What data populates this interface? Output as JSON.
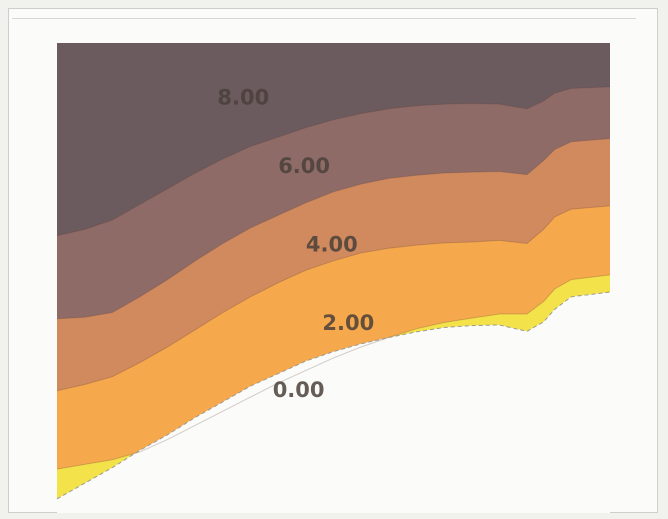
{
  "chart_data": {
    "type": "area",
    "title": "",
    "xlabel": "",
    "ylabel": "",
    "x": [
      0,
      5,
      10,
      15,
      20,
      25,
      30,
      35,
      40,
      45,
      50,
      55,
      60,
      65,
      70,
      75,
      80,
      85,
      88,
      90,
      93,
      100
    ],
    "boundaries": [
      {
        "level": "0.00",
        "y": [
          0.45,
          0.95,
          1.45,
          2.0,
          2.5,
          3.05,
          3.55,
          4.05,
          4.45,
          4.85,
          5.15,
          5.4,
          5.6,
          5.78,
          5.92,
          5.98,
          6.0,
          5.8,
          6.1,
          6.5,
          6.9,
          7.05
        ]
      },
      {
        "level": "2.00",
        "y": [
          1.4,
          1.55,
          1.7,
          1.95,
          2.35,
          2.8,
          3.25,
          3.7,
          4.15,
          4.55,
          4.95,
          5.3,
          5.6,
          5.88,
          6.08,
          6.22,
          6.35,
          6.35,
          6.75,
          7.15,
          7.45,
          7.6
        ]
      },
      {
        "level": "4.00",
        "y": [
          3.9,
          4.1,
          4.35,
          4.8,
          5.3,
          5.85,
          6.4,
          6.9,
          7.35,
          7.75,
          8.05,
          8.3,
          8.45,
          8.55,
          8.62,
          8.65,
          8.7,
          8.6,
          9.05,
          9.45,
          9.7,
          9.8
        ]
      },
      {
        "level": "6.00",
        "y": [
          6.2,
          6.25,
          6.4,
          6.9,
          7.45,
          8.05,
          8.6,
          9.1,
          9.5,
          9.9,
          10.25,
          10.5,
          10.68,
          10.78,
          10.85,
          10.88,
          10.9,
          10.8,
          11.25,
          11.6,
          11.85,
          11.95
        ]
      },
      {
        "level": "8.00",
        "y": [
          8.85,
          9.05,
          9.35,
          9.85,
          10.35,
          10.85,
          11.3,
          11.7,
          12.0,
          12.3,
          12.55,
          12.75,
          12.9,
          13.0,
          13.05,
          13.07,
          13.05,
          12.9,
          13.15,
          13.4,
          13.55,
          13.6
        ]
      }
    ],
    "contour_labels": [
      {
        "text": "0.00",
        "x": 39,
        "y": 3.95
      },
      {
        "text": "2.00",
        "x": 48,
        "y": 6.1
      },
      {
        "text": "4.00",
        "x": 45,
        "y": 8.6
      },
      {
        "text": "6.00",
        "x": 40,
        "y": 11.1
      },
      {
        "text": "8.00",
        "x": 29,
        "y": 13.3
      }
    ],
    "bands": [
      {
        "name": "below-0.00",
        "color": "#fbfbf9"
      },
      {
        "name": "0-2",
        "color": "#f3e24a"
      },
      {
        "name": "2-4",
        "color": "#f6a84c"
      },
      {
        "name": "4-6",
        "color": "#d08a5e"
      },
      {
        "name": "6-8",
        "color": "#8f6b67"
      },
      {
        "name": "above-8",
        "color": "#6b5a5e"
      }
    ],
    "xlim": [
      0,
      100
    ],
    "ylim": [
      0,
      15
    ],
    "grid": false,
    "legend": "none"
  }
}
